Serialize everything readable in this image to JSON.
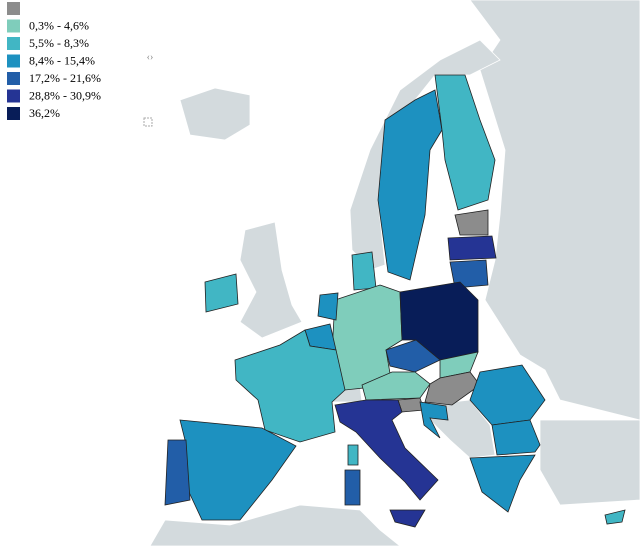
{
  "legend": {
    "items": [
      {
        "color": "#8c8c8c"
      },
      {
        "color": "#7fcdbb",
        "label": "0,3% - 4,6%"
      },
      {
        "color": "#41b6c4",
        "label": "5,5% - 8,3%"
      },
      {
        "color": "#1d91c0",
        "label": "8,4% - 15,4%"
      },
      {
        "color": "#225ea8",
        "label": "17,2% - 21,6%"
      },
      {
        "color": "#253494",
        "label": "28,8% - 30,9%"
      },
      {
        "color": "#081d58",
        "label": "36,2%"
      }
    ]
  }
}
